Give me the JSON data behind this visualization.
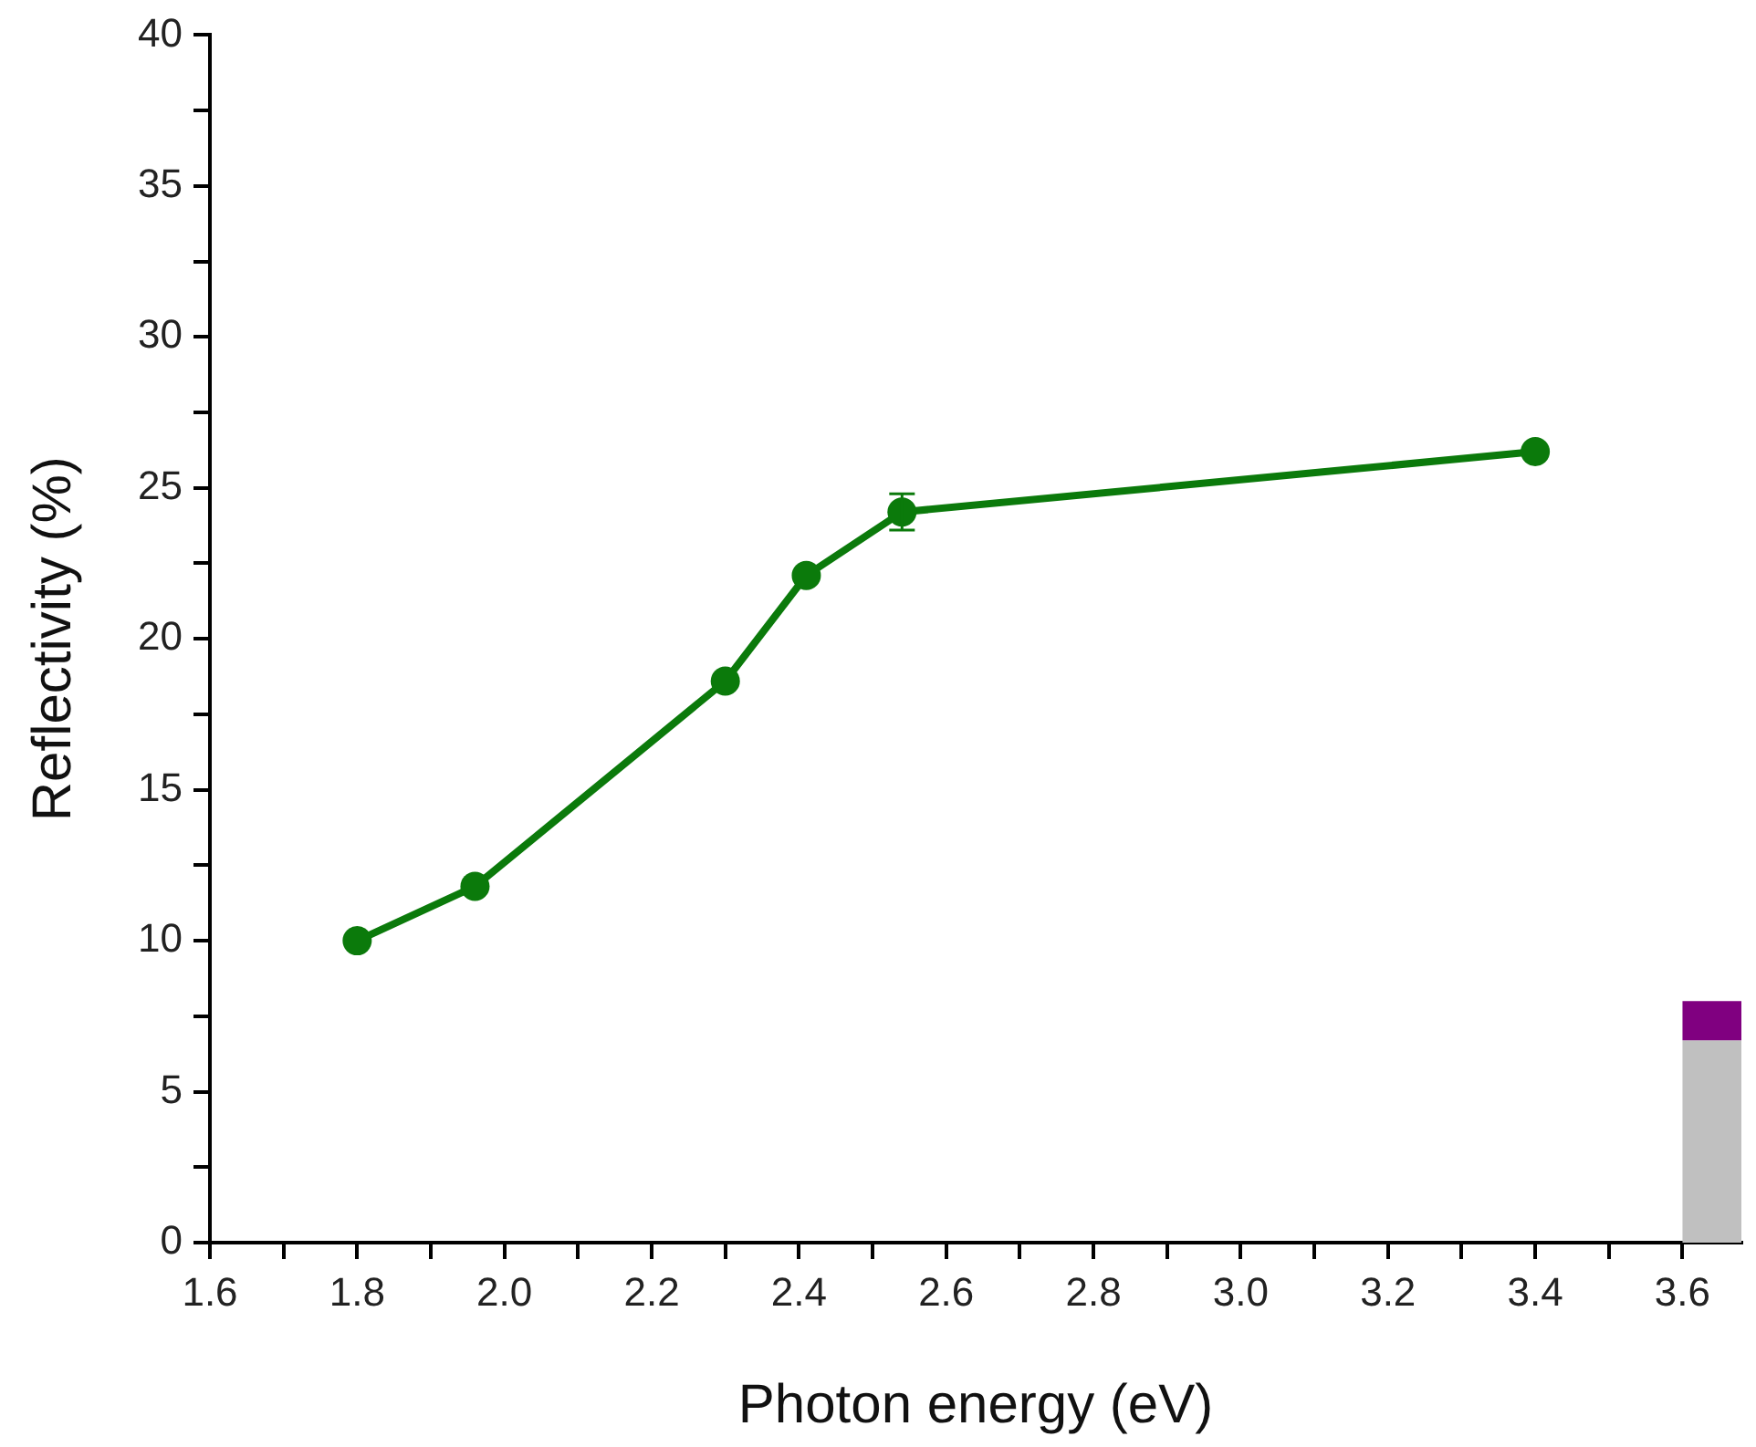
{
  "chart_data": {
    "type": "line",
    "xlabel": "Photon energy (eV)",
    "ylabel": "Reflectivity (%)",
    "xlim": [
      1.6,
      3.68
    ],
    "ylim": [
      0,
      40
    ],
    "xticks": [
      {
        "value": 1.6,
        "label": "1.6"
      },
      {
        "value": 1.7,
        "label": null
      },
      {
        "value": 1.8,
        "label": "1.8"
      },
      {
        "value": 1.9,
        "label": null
      },
      {
        "value": 2.0,
        "label": "2.0"
      },
      {
        "value": 2.1,
        "label": null
      },
      {
        "value": 2.2,
        "label": "2.2"
      },
      {
        "value": 2.3,
        "label": null
      },
      {
        "value": 2.4,
        "label": "2.4"
      },
      {
        "value": 2.5,
        "label": null
      },
      {
        "value": 2.6,
        "label": "2.6"
      },
      {
        "value": 2.7,
        "label": null
      },
      {
        "value": 2.8,
        "label": "2.8"
      },
      {
        "value": 2.9,
        "label": null
      },
      {
        "value": 3.0,
        "label": "3.0"
      },
      {
        "value": 3.1,
        "label": null
      },
      {
        "value": 3.2,
        "label": "3.2"
      },
      {
        "value": 3.3,
        "label": null
      },
      {
        "value": 3.4,
        "label": "3.4"
      },
      {
        "value": 3.5,
        "label": null
      },
      {
        "value": 3.6,
        "label": "3.6"
      }
    ],
    "yticks": [
      0,
      {
        "value": 2.5,
        "label": null
      },
      5,
      {
        "value": 7.5,
        "label": null
      },
      10,
      {
        "value": 12.5,
        "label": null
      },
      15,
      {
        "value": 17.5,
        "label": null
      },
      20,
      {
        "value": 22.5,
        "label": null
      },
      25,
      {
        "value": 27.5,
        "label": null
      },
      30,
      {
        "value": 32.5,
        "label": null
      },
      35,
      {
        "value": 37.5,
        "label": null
      },
      40
    ],
    "grid": false,
    "legend": false,
    "marker": "circle",
    "line_style": "solid",
    "stacked": true,
    "series": [
      {
        "color": "#0b7a0b",
        "x": [
          1.8,
          1.96,
          2.3,
          2.41,
          2.54,
          3.4
        ],
        "values": [
          10.0,
          11.8,
          18.6,
          22.1,
          24.2,
          26.2
        ],
        "errors": [
          null,
          null,
          null,
          null,
          0.6,
          null
        ]
      },
      {
        "type": "bar",
        "color": "#c0c0c0",
        "x": [
          3.64
        ],
        "values": [
          6.7
        ]
      },
      {
        "type": "bar",
        "color": "#800080",
        "x": [
          3.64
        ],
        "values": [
          1.3
        ]
      }
    ]
  }
}
